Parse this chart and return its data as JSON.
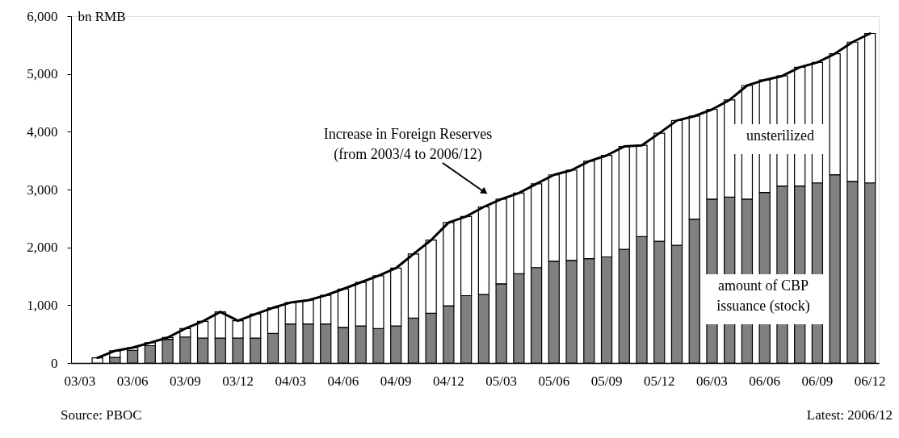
{
  "chart_data": {
    "type": "bar",
    "stacked": true,
    "grid": false,
    "ylabel": "bn RMB",
    "categories": [
      "03/03",
      null,
      null,
      "03/06",
      null,
      null,
      "03/09",
      null,
      null,
      "03/12",
      null,
      null,
      "04/03",
      null,
      null,
      "04/06",
      null,
      null,
      "04/09",
      null,
      null,
      "04/12",
      null,
      null,
      "05/03",
      null,
      null,
      "05/06",
      null,
      null,
      "05/09",
      null,
      null,
      "05/12",
      null,
      null,
      "06/03",
      null,
      null,
      "06/06",
      null,
      null,
      "06/09",
      null,
      null,
      "06/12"
    ],
    "ylim": [
      0,
      6000
    ],
    "yticks": [
      0,
      {
        "value": 1000,
        "label": "1,000"
      },
      {
        "value": 2000,
        "label": "2,000"
      },
      {
        "value": 3000,
        "label": "3,000"
      },
      {
        "value": 4000,
        "label": "4,000"
      },
      {
        "value": 5000,
        "label": "5,000"
      },
      {
        "value": 6000,
        "label": "6,000"
      }
    ],
    "series": [
      {
        "name": "amount of CBP\nissuance (stock)",
        "type": "bar",
        "color": "#808080",
        "values": [
          null,
          0,
          95,
          220,
          300,
          410,
          450,
          430,
          430,
          430,
          430,
          510,
          675,
          675,
          675,
          615,
          640,
          595,
          640,
          775,
          860,
          990,
          1165,
          1185,
          1370,
          1545,
          1650,
          1760,
          1775,
          1805,
          1835,
          1965,
          2185,
          2105,
          2035,
          2490,
          2835,
          2870,
          2835,
          2950,
          3060,
          3060,
          3115,
          3255,
          3140,
          3115
        ]
      },
      {
        "name": "unsterilized",
        "type": "bar",
        "color": "#ffffff",
        "values": [
          null,
          90,
          115,
          45,
          50,
          30,
          145,
          290,
          455,
          300,
          415,
          445,
          370,
          410,
          495,
          665,
          755,
          915,
          1000,
          1110,
          1265,
          1440,
          1370,
          1515,
          1465,
          1395,
          1450,
          1495,
          1560,
          1685,
          1755,
          1780,
          1580,
          1870,
          2160,
          1780,
          1550,
          1680,
          1965,
          1945,
          1905,
          2055,
          2085,
          2095,
          2410,
          2585
        ]
      },
      {
        "name": "Increase in Foreign Reserves\n(from 2003/4 to 2006/12)",
        "type": "line",
        "color": "#000000",
        "values": [
          null,
          90,
          210,
          265,
          350,
          440,
          595,
          720,
          885,
          730,
          845,
          955,
          1045,
          1085,
          1170,
          1280,
          1395,
          1510,
          1640,
          1885,
          2125,
          2430,
          2535,
          2700,
          2835,
          2940,
          3100,
          3255,
          3335,
          3490,
          3590,
          3745,
          3765,
          3975,
          4195,
          4270,
          4385,
          4550,
          4800,
          4895,
          4965,
          5115,
          5200,
          5350,
          5550,
          5700
        ]
      }
    ],
    "annotations": [
      "Source: PBOC",
      "Latest: 2006/12"
    ]
  }
}
